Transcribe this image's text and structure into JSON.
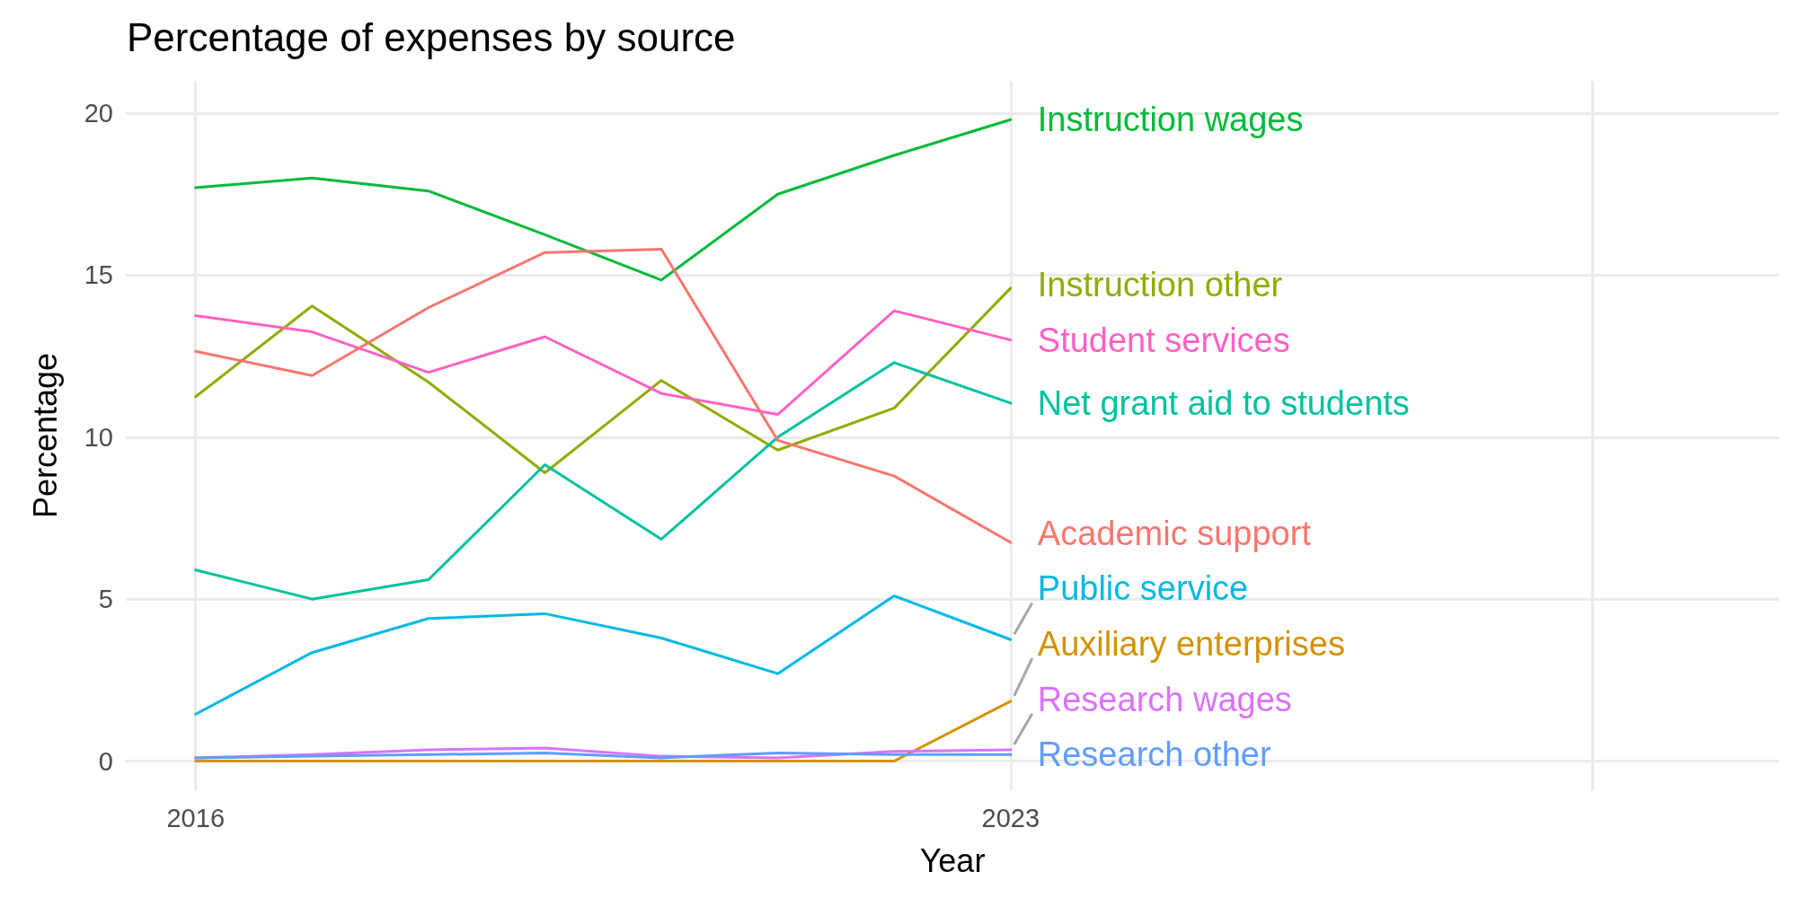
{
  "chart_data": {
    "type": "line",
    "title": "Percentage of expenses by source",
    "xlabel": "Year",
    "ylabel": "Percentage",
    "x": [
      2016,
      2017,
      2018,
      2019,
      2020,
      2021,
      2022,
      2023
    ],
    "xlim": [
      2015.4,
      2029.6
    ],
    "xticks": [
      2016,
      2023,
      {
        "value": 2028,
        "label": null
      }
    ],
    "ylim": [
      -0.9,
      21
    ],
    "yticks": [
      0,
      5,
      10,
      15,
      20
    ],
    "grid": true,
    "legend": false,
    "marker": "none",
    "line_style": "solid",
    "series": [
      {
        "name": "Instruction wages",
        "color": "#00ba38",
        "values": [
          17.7,
          18.0,
          17.6,
          16.25,
          14.85,
          17.5,
          18.7,
          19.8
        ]
      },
      {
        "name": "Instruction other",
        "color": "#93aa00",
        "values": [
          11.25,
          14.05,
          11.7,
          8.9,
          11.75,
          9.6,
          10.9,
          14.6
        ]
      },
      {
        "name": "Student services",
        "color": "#ff61c3",
        "values": [
          13.75,
          13.25,
          12.0,
          13.1,
          11.35,
          10.7,
          13.9,
          13.0
        ]
      },
      {
        "name": "Net grant aid to students",
        "color": "#00c19f",
        "values": [
          5.9,
          5.0,
          5.6,
          9.15,
          6.85,
          10.0,
          12.3,
          11.05
        ]
      },
      {
        "name": "Academic support",
        "color": "#f8766d",
        "values": [
          12.65,
          11.9,
          14.0,
          15.7,
          15.8,
          9.9,
          8.8,
          6.75
        ]
      },
      {
        "name": "Public service",
        "color": "#00b9e3",
        "values": [
          1.45,
          3.35,
          4.4,
          4.55,
          3.8,
          2.7,
          5.1,
          3.75
        ]
      },
      {
        "name": "Auxiliary enterprises",
        "color": "#d39200",
        "values": [
          0,
          0,
          0,
          0,
          0,
          0,
          0,
          1.85
        ]
      },
      {
        "name": "Research wages",
        "color": "#db72fb",
        "values": [
          0.1,
          0.2,
          0.35,
          0.4,
          0.15,
          0.1,
          0.3,
          0.35
        ]
      },
      {
        "name": "Research other",
        "color": "#619cff",
        "values": [
          0.1,
          0.15,
          0.2,
          0.25,
          0.1,
          0.25,
          0.2,
          0.2
        ]
      }
    ]
  }
}
